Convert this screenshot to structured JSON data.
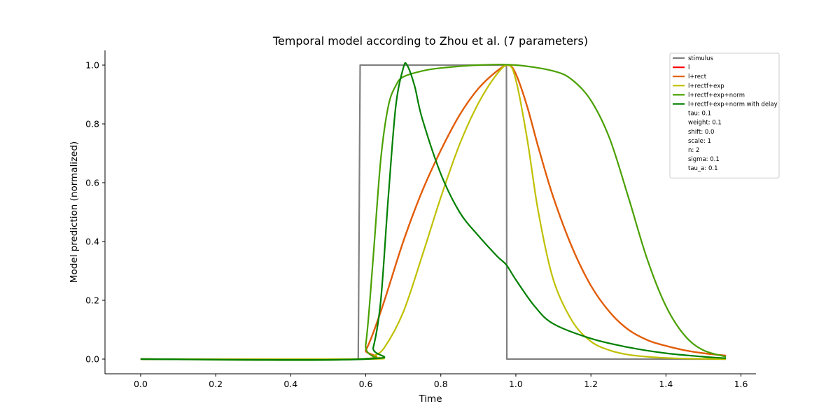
{
  "chart_data": {
    "type": "line",
    "title": "Temporal model according to Zhou et al. (7 parameters)",
    "xlabel": "Time",
    "ylabel": "Model prediction (normalized)",
    "xlim": [
      -0.095,
      1.64
    ],
    "ylim": [
      -0.05,
      1.05
    ],
    "xticks": [
      0.0,
      0.2,
      0.4,
      0.6,
      0.8,
      1.0,
      1.2,
      1.4,
      1.6
    ],
    "yticks": [
      0.0,
      0.2,
      0.4,
      0.6,
      0.8,
      1.0
    ],
    "xtick_labels": [
      "0.0",
      "0.2",
      "0.4",
      "0.6",
      "0.8",
      "1.0",
      "1.2",
      "1.4",
      "1.6"
    ],
    "ytick_labels": [
      "0.0",
      "0.2",
      "0.4",
      "0.6",
      "0.8",
      "1.0"
    ],
    "grid": false,
    "legend_position": "top-right",
    "series": [
      {
        "name": "stimulus",
        "color": "#808080",
        "x": [
          0.0,
          0.58,
          0.585,
          0.975,
          0.976,
          1.56
        ],
        "y": [
          0.0,
          0.0,
          1.0,
          1.0,
          0.0,
          0.0
        ]
      },
      {
        "name": "l",
        "color": "#ff0000",
        "x": [
          0.0,
          0.58,
          0.6,
          0.62,
          0.65,
          0.7,
          0.75,
          0.8,
          0.85,
          0.9,
          0.95,
          0.98,
          1.0,
          1.03,
          1.06,
          1.1,
          1.15,
          1.2,
          1.25,
          1.3,
          1.35,
          1.4,
          1.45,
          1.5,
          1.56
        ],
        "y": [
          0.0,
          0.0,
          0.03,
          0.09,
          0.2,
          0.4,
          0.57,
          0.71,
          0.83,
          0.92,
          0.98,
          1.0,
          0.97,
          0.86,
          0.72,
          0.55,
          0.38,
          0.25,
          0.16,
          0.1,
          0.065,
          0.045,
          0.03,
          0.02,
          0.012
        ]
      },
      {
        "name": "l+rect",
        "color": "#e06000",
        "x": [
          0.0,
          0.58,
          0.6,
          0.62,
          0.65,
          0.7,
          0.75,
          0.8,
          0.85,
          0.9,
          0.95,
          0.98,
          1.0,
          1.03,
          1.06,
          1.1,
          1.15,
          1.2,
          1.25,
          1.3,
          1.35,
          1.4,
          1.45,
          1.5,
          1.56
        ],
        "y": [
          0.0,
          0.0,
          0.03,
          0.09,
          0.2,
          0.4,
          0.57,
          0.71,
          0.83,
          0.92,
          0.98,
          1.0,
          0.97,
          0.86,
          0.72,
          0.55,
          0.38,
          0.25,
          0.16,
          0.1,
          0.065,
          0.045,
          0.03,
          0.02,
          0.012
        ]
      },
      {
        "name": "l+rectf+exp",
        "color": "#bfc000",
        "x": [
          0.0,
          0.6,
          0.62,
          0.65,
          0.7,
          0.75,
          0.8,
          0.85,
          0.9,
          0.95,
          0.98,
          1.0,
          1.03,
          1.06,
          1.1,
          1.15,
          1.2,
          1.25,
          1.3,
          1.35,
          1.4,
          1.45,
          1.5,
          1.56
        ],
        "y": [
          0.0,
          0.0,
          0.01,
          0.04,
          0.16,
          0.35,
          0.55,
          0.73,
          0.87,
          0.97,
          1.0,
          0.95,
          0.75,
          0.5,
          0.27,
          0.13,
          0.06,
          0.03,
          0.015,
          0.008,
          0.004,
          0.002,
          0.001,
          0.0
        ]
      },
      {
        "name": "l+rectf+exp+norm",
        "color": "#4aa000",
        "x": [
          0.0,
          0.58,
          0.6,
          0.62,
          0.64,
          0.66,
          0.68,
          0.7,
          0.75,
          0.8,
          0.9,
          1.0,
          1.1,
          1.15,
          1.2,
          1.25,
          1.3,
          1.35,
          1.4,
          1.45,
          1.5,
          1.56
        ],
        "y": [
          0.0,
          0.0,
          0.05,
          0.35,
          0.68,
          0.86,
          0.93,
          0.96,
          0.98,
          0.99,
          1.0,
          1.0,
          0.98,
          0.95,
          0.88,
          0.75,
          0.55,
          0.34,
          0.18,
          0.08,
          0.03,
          0.008
        ]
      },
      {
        "name": "l+rectf+exp+norm with delay",
        "color": "#008000",
        "x": [
          0.0,
          0.6,
          0.62,
          0.64,
          0.66,
          0.68,
          0.7,
          0.71,
          0.73,
          0.75,
          0.8,
          0.85,
          0.9,
          0.95,
          0.975,
          1.0,
          1.05,
          1.1,
          1.2,
          1.3,
          1.4,
          1.5,
          1.56
        ],
        "y": [
          0.0,
          0.0,
          0.04,
          0.2,
          0.55,
          0.86,
          0.99,
          1.0,
          0.93,
          0.82,
          0.63,
          0.5,
          0.42,
          0.35,
          0.32,
          0.27,
          0.18,
          0.12,
          0.07,
          0.04,
          0.02,
          0.008,
          0.003
        ]
      }
    ],
    "legend_params": [
      "tau: 0.1",
      "weight: 0.1",
      "shift: 0.0",
      "scale: 1",
      "n: 2",
      "sigma: 0.1",
      "tau_a: 0.1"
    ]
  }
}
